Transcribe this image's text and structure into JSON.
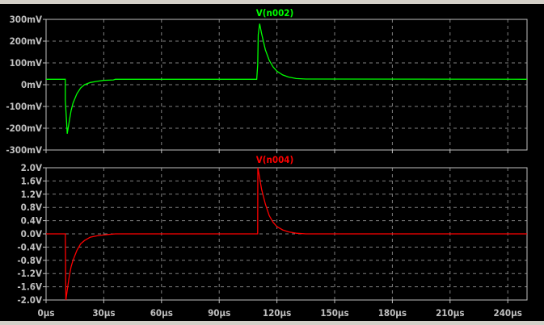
{
  "chart_data": [
    {
      "type": "line",
      "title": "V(n002)",
      "color": "#00ff00",
      "x_unit": "µs",
      "xlim": [
        0,
        250
      ],
      "ylim": [
        -300,
        300
      ],
      "y_unit": "mV",
      "grid": true,
      "x_ticks": [
        "0µs",
        "30µs",
        "60µs",
        "90µs",
        "120µs",
        "150µs",
        "180µs",
        "210µs",
        "240µs"
      ],
      "y_ticks": [
        "300mV",
        "200mV",
        "100mV",
        "0mV",
        "-100mV",
        "-200mV",
        "-300mV"
      ],
      "y_tick_values": [
        300,
        200,
        100,
        0,
        -100,
        -200,
        -300
      ],
      "points": [
        [
          0,
          25
        ],
        [
          10,
          25
        ],
        [
          10,
          -70
        ],
        [
          11,
          -225
        ],
        [
          12,
          -170
        ],
        [
          13,
          -120
        ],
        [
          14,
          -85
        ],
        [
          16,
          -42
        ],
        [
          18,
          -15
        ],
        [
          20,
          0
        ],
        [
          23,
          10
        ],
        [
          26,
          15
        ],
        [
          30,
          20
        ],
        [
          35,
          22
        ],
        [
          36,
          25
        ],
        [
          109.5,
          25
        ],
        [
          110,
          90
        ],
        [
          110.3,
          230
        ],
        [
          111,
          280
        ],
        [
          112,
          235
        ],
        [
          114,
          160
        ],
        [
          116,
          112
        ],
        [
          118,
          82
        ],
        [
          120,
          62
        ],
        [
          123,
          45
        ],
        [
          126,
          35
        ],
        [
          130,
          28
        ],
        [
          135,
          26
        ],
        [
          250,
          25
        ]
      ]
    },
    {
      "type": "line",
      "title": "V(n004)",
      "color": "#ff0000",
      "x_unit": "µs",
      "xlim": [
        0,
        250
      ],
      "ylim": [
        -2.0,
        2.0
      ],
      "y_unit": "V",
      "grid": true,
      "x_ticks": [
        "0µs",
        "30µs",
        "60µs",
        "90µs",
        "120µs",
        "150µs",
        "180µs",
        "210µs",
        "240µs"
      ],
      "y_ticks": [
        "2.0V",
        "1.6V",
        "1.2V",
        "0.8V",
        "0.4V",
        "0.0V",
        "-0.4V",
        "-0.8V",
        "-1.2V",
        "-1.6V",
        "-2.0V"
      ],
      "y_tick_values": [
        2.0,
        1.6,
        1.2,
        0.8,
        0.4,
        0.0,
        -0.4,
        -0.8,
        -1.2,
        -1.6,
        -2.0
      ],
      "points": [
        [
          0,
          0
        ],
        [
          10,
          0
        ],
        [
          10.3,
          -2.0
        ],
        [
          11,
          -1.7
        ],
        [
          12,
          -1.3
        ],
        [
          13,
          -1.0
        ],
        [
          14,
          -0.8
        ],
        [
          16,
          -0.5
        ],
        [
          18,
          -0.3
        ],
        [
          20,
          -0.2
        ],
        [
          23,
          -0.1
        ],
        [
          27,
          -0.05
        ],
        [
          32,
          -0.02
        ],
        [
          36,
          0
        ],
        [
          110,
          0
        ],
        [
          110.1,
          2.0
        ],
        [
          111,
          1.7
        ],
        [
          112,
          1.35
        ],
        [
          114,
          0.9
        ],
        [
          116,
          0.55
        ],
        [
          118,
          0.35
        ],
        [
          120,
          0.22
        ],
        [
          123,
          0.12
        ],
        [
          126,
          0.06
        ],
        [
          130,
          0.02
        ],
        [
          135,
          0
        ],
        [
          250,
          0
        ]
      ]
    }
  ]
}
